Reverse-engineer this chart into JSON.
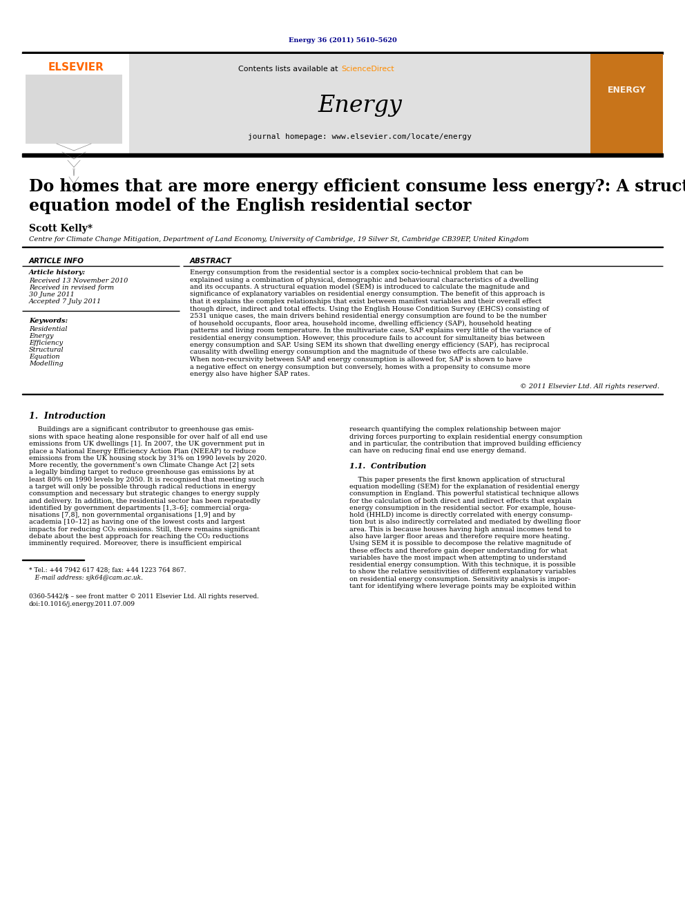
{
  "page_color": "#ffffff",
  "header_journal_ref": "Energy 36 (2011) 5610–5620",
  "header_journal_ref_color": "#00008B",
  "journal_banner_bg": "#e0e0e0",
  "science_direct_color": "#ff8c00",
  "journal_name": "Energy",
  "journal_homepage": "journal homepage: www.elsevier.com/locate/energy",
  "elsevier_color": "#ff6600",
  "elsevier_text": "ELSEVIER",
  "paper_title_line1": "Do homes that are more energy efficient consume less energy?: A structural",
  "paper_title_line2": "equation model of the English residential sector",
  "author": "Scott Kelly*",
  "affiliation": "Centre for Climate Change Mitigation, Department of Land Economy, University of Cambridge, 19 Silver St, Cambridge CB39EP, United Kingdom",
  "article_info_label": "ARTICLE INFO",
  "article_history_label": "Article history:",
  "received_label": "Received 13 November 2010",
  "received_revised": "Received in revised form",
  "revised_date": "30 June 2011",
  "accepted": "Accepted 7 July 2011",
  "keywords_label": "Keywords:",
  "keywords": [
    "Residential",
    "Energy",
    "Efficiency",
    "Structural",
    "Equation",
    "Modelling"
  ],
  "abstract_label": "ABSTRACT",
  "abstract_lines": [
    "Energy consumption from the residential sector is a complex socio-technical problem that can be",
    "explained using a combination of physical, demographic and behavioural characteristics of a dwelling",
    "and its occupants. A structural equation model (SEM) is introduced to calculate the magnitude and",
    "significance of explanatory variables on residential energy consumption. The benefit of this approach is",
    "that it explains the complex relationships that exist between manifest variables and their overall effect",
    "though direct, indirect and total effects. Using the English House Condition Survey (EHCS) consisting of",
    "2531 unique cases, the main drivers behind residential energy consumption are found to be the number",
    "of household occupants, floor area, household income, dwelling efficiency (SAP), household heating",
    "patterns and living room temperature. In the multivariate case, SAP explains very little of the variance of",
    "residential energy consumption. However, this procedure fails to account for simultaneity bias between",
    "energy consumption and SAP. Using SEM its shown that dwelling energy efficiency (SAP), has reciprocal",
    "causality with dwelling energy consumption and the magnitude of these two effects are calculable.",
    "When non-recursivity between SAP and energy consumption is allowed for, SAP is shown to have",
    "a negative effect on energy consumption but conversely, homes with a propensity to consume more",
    "energy also have higher SAP rates."
  ],
  "copyright_text": "© 2011 Elsevier Ltd. All rights reserved.",
  "section1_title": "1.  Introduction",
  "intro_col1_lines": [
    "    Buildings are a significant contributor to greenhouse gas emis-",
    "sions with space heating alone responsible for over half of all end use",
    "emissions from UK dwellings [1]. In 2007, the UK government put in",
    "place a National Energy Efficiency Action Plan (NEEAP) to reduce",
    "emissions from the UK housing stock by 31% on 1990 levels by 2020.",
    "More recently, the government’s own Climate Change Act [2] sets",
    "a legally binding target to reduce greenhouse gas emissions by at",
    "least 80% on 1990 levels by 2050. It is recognised that meeting such",
    "a target will only be possible through radical reductions in energy",
    "consumption and necessary but strategic changes to energy supply",
    "and delivery. In addition, the residential sector has been repeatedly",
    "identified by government departments [1,3–6]; commercial orga-",
    "nisations [7,8], non governmental organisations [1,9] and by",
    "academia [10–12] as having one of the lowest costs and largest",
    "impacts for reducing CO₂ emissions. Still, there remains significant",
    "debate about the best approach for reaching the CO₂ reductions",
    "imminently required. Moreover, there is insufficient empirical"
  ],
  "intro_col2_lines": [
    "research quantifying the complex relationship between major",
    "driving forces purporting to explain residential energy consumption",
    "and in particular, the contribution that improved building efficiency",
    "can have on reducing final end use energy demand.",
    "",
    "1.1.  Contribution",
    "",
    "    This paper presents the first known application of structural",
    "equation modelling (SEM) for the explanation of residential energy",
    "consumption in England. This powerful statistical technique allows",
    "for the calculation of both direct and indirect effects that explain",
    "energy consumption in the residential sector. For example, house-",
    "hold (HHLD) income is directly correlated with energy consump-",
    "tion but is also indirectly correlated and mediated by dwelling floor",
    "area. This is because houses having high annual incomes tend to",
    "also have larger floor areas and therefore require more heating.",
    "Using SEM it is possible to decompose the relative magnitude of",
    "these effects and therefore gain deeper understanding for what",
    "variables have the most impact when attempting to understand",
    "residential energy consumption. With this technique, it is possible",
    "to show the relative sensitivities of different explanatory variables",
    "on residential energy consumption. Sensitivity analysis is impor-",
    "tant for identifying where leverage points may be exploited within"
  ],
  "footnote_star": "* Tel.: +44 7942 617 428; fax: +44 1223 764 867.",
  "footnote_email": "   E-mail address: sjk64@cam.ac.uk.",
  "footer_issn": "0360-5442/$ – see front matter © 2011 Elsevier Ltd. All rights reserved.",
  "footer_doi": "doi:10.1016/j.energy.2011.07.009"
}
